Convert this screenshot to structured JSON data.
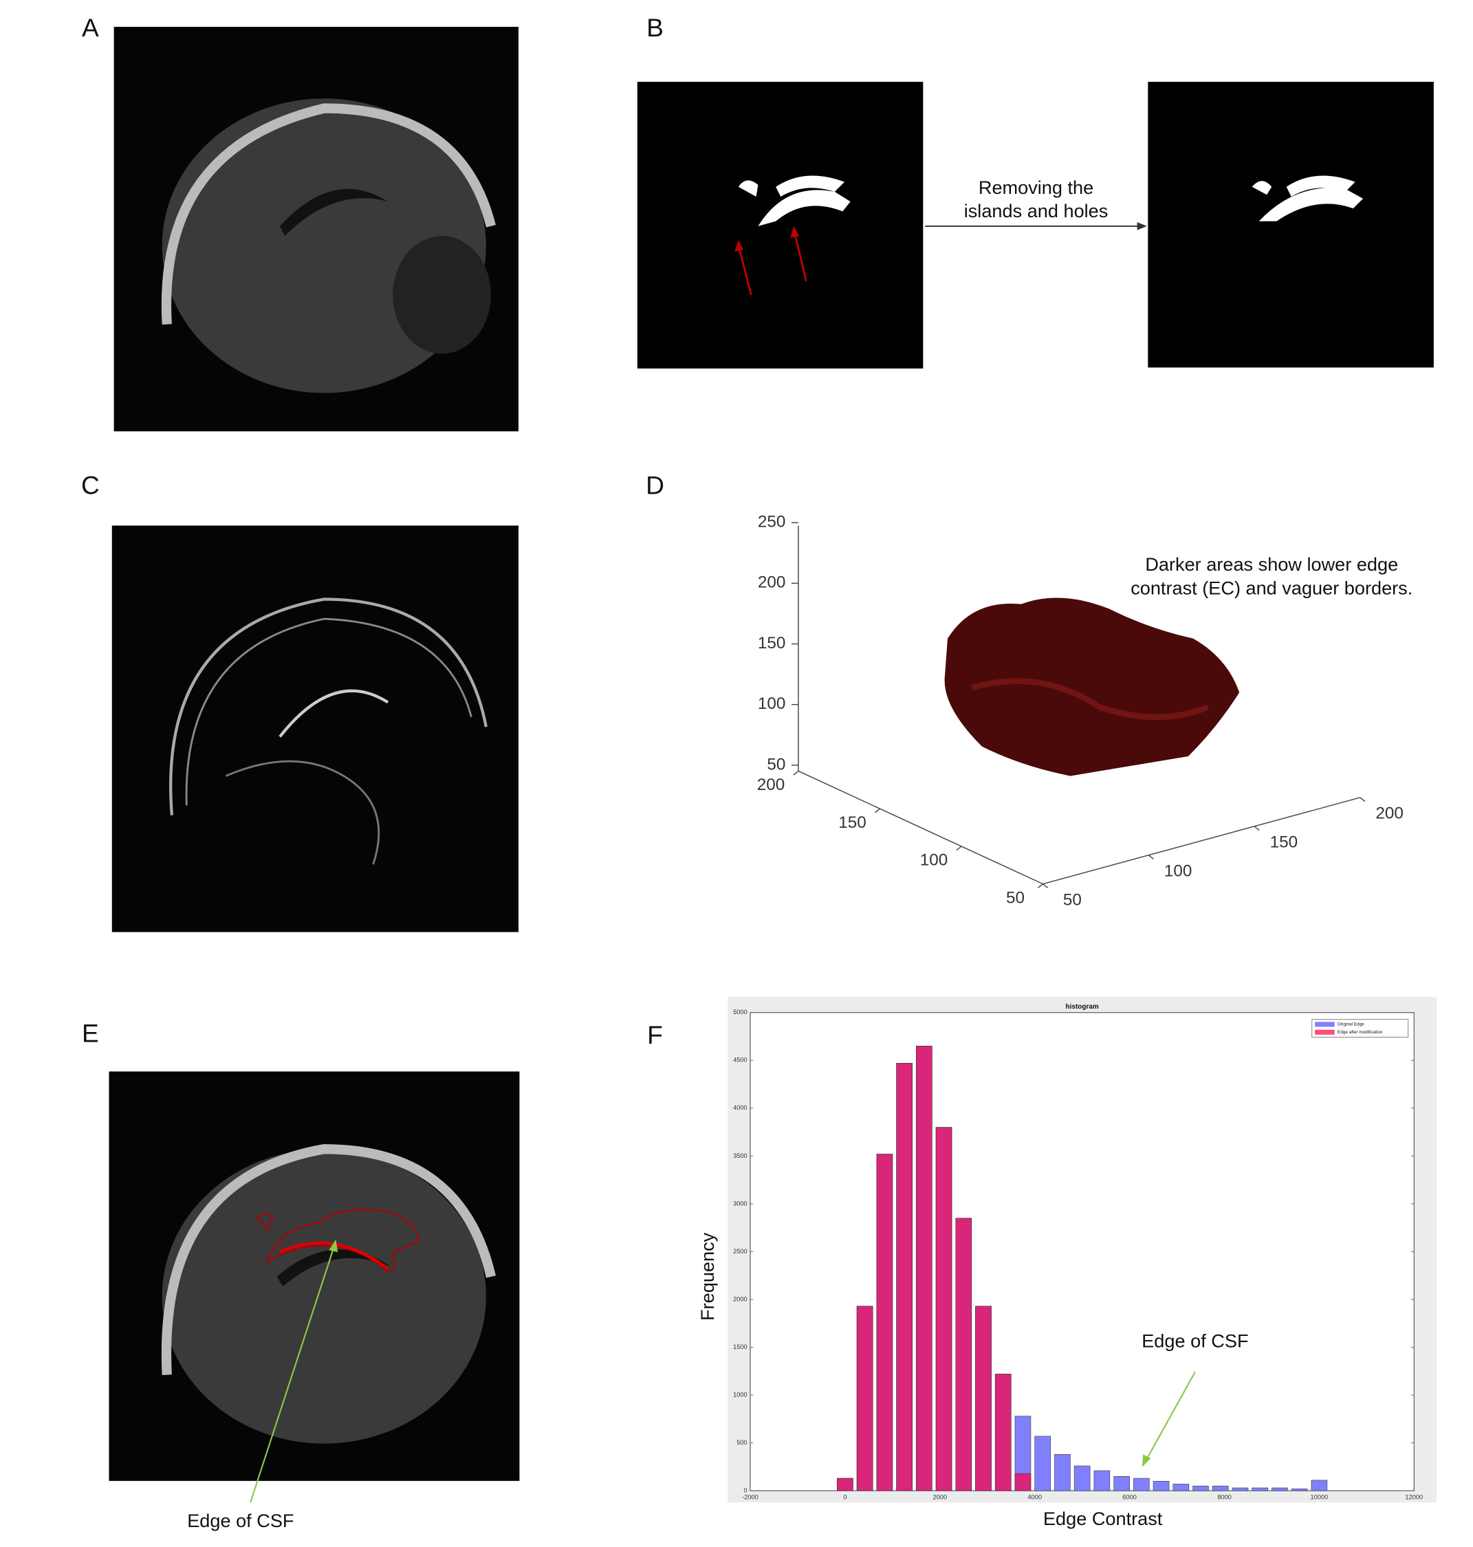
{
  "panel_labels": [
    "A",
    "B",
    "C",
    "D",
    "E",
    "F"
  ],
  "panel_b": {
    "annotation": [
      "Removing the",
      "islands and holes"
    ]
  },
  "panel_e": {
    "annotation": "Edge of CSF"
  },
  "chart_data": [
    {
      "type": "surface3d",
      "annotation": [
        "Darker areas show lower edge",
        "contrast (EC) and vaguer borders."
      ],
      "xlim": [
        50,
        200
      ],
      "xticks": [
        50,
        100,
        150,
        200
      ],
      "ylim": [
        50,
        200
      ],
      "yticks": [
        50,
        100,
        150,
        200
      ],
      "zlim": [
        50,
        250
      ],
      "zticks": [
        50,
        100,
        150,
        200,
        250
      ]
    },
    {
      "type": "histogram",
      "title": "histogram",
      "xlabel": "Edge Contrast",
      "ylabel": "Frequency",
      "annotation": "Edge of CSF",
      "bins": [
        -208,
        208,
        625,
        1042,
        1458,
        1875,
        2292,
        2708,
        3125,
        3542,
        3958,
        4375,
        4792,
        5208,
        5625,
        6042,
        6458,
        6875,
        7292,
        7708,
        8125,
        8542,
        8958,
        9375,
        9792,
        10208
      ],
      "series": [
        {
          "name": "Original Edge",
          "color": "#8080ff",
          "values": [
            130,
            1930,
            3520,
            4470,
            4650,
            3800,
            2850,
            1930,
            1220,
            780,
            570,
            380,
            260,
            210,
            150,
            130,
            100,
            70,
            50,
            50,
            30,
            30,
            30,
            20,
            110
          ]
        },
        {
          "name": "Edge after modification",
          "color": "#ff0040",
          "values": [
            130,
            1930,
            3520,
            4470,
            4650,
            3800,
            2850,
            1930,
            1220,
            180,
            0,
            0,
            0,
            0,
            0,
            0,
            0,
            0,
            0,
            0,
            0,
            0,
            0,
            0,
            0
          ]
        }
      ],
      "xlim": [
        -2000,
        12000
      ],
      "xticks": [
        -2000,
        0,
        2000,
        4000,
        6000,
        8000,
        10000,
        12000
      ],
      "ylim": [
        0,
        5000
      ],
      "yticks": [
        0,
        500,
        1000,
        1500,
        2000,
        2500,
        3000,
        3500,
        4000,
        4500,
        5000
      ],
      "legend": "upper right"
    }
  ]
}
